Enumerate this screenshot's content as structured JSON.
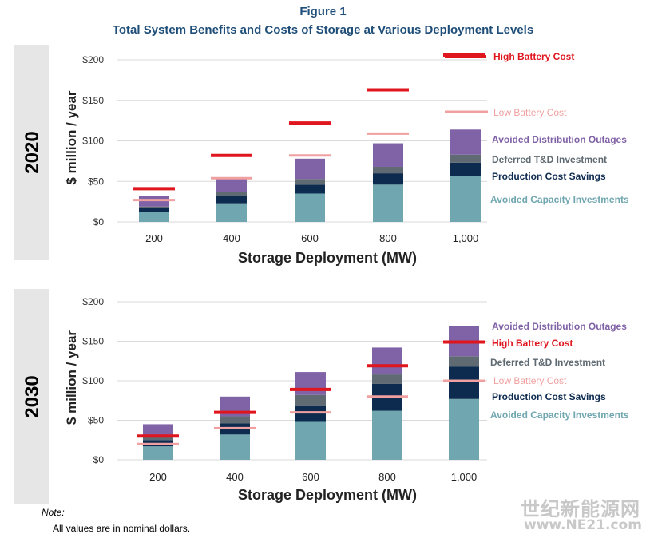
{
  "figure": {
    "label": "Figure 1",
    "title": "Total System Benefits and Costs of Storage at Various Deployment Levels"
  },
  "note": {
    "label": "Note:",
    "text": "All values are in nominal dollars."
  },
  "watermark": {
    "line1": "世纪新能源网",
    "line2": "www.NE21.com"
  },
  "colors": {
    "avoided_capacity": "#6fa6b0",
    "production_cost": "#0d2a4f",
    "deferred_td": "#5f6a72",
    "distribution_outages": "#8062a6",
    "high_battery": "#e0161e",
    "low_battery": "#f0a0a0",
    "panel_bg": "#e6e6e6",
    "title": "#1f4e79"
  },
  "chart_data": [
    {
      "type": "bar",
      "stacked": true,
      "panel_label": "2020",
      "xlabel": "Storage Deployment (MW)",
      "ylabel": "$ million / year",
      "categories": [
        "200",
        "400",
        "600",
        "800",
        "1,000"
      ],
      "ylim": [
        0,
        200
      ],
      "yticks": [
        "$0",
        "$50",
        "$100",
        "$150",
        "$200"
      ],
      "grid": true,
      "series": [
        {
          "name": "Avoided Capacity Investments",
          "values": [
            12,
            23,
            35,
            46,
            57
          ]
        },
        {
          "name": "Production Cost Savings",
          "values": [
            5,
            9,
            11,
            14,
            16
          ]
        },
        {
          "name": "Deferred T&D Investment",
          "values": [
            2,
            5,
            7,
            8,
            10
          ]
        },
        {
          "name": "Avoided Distribution Outages",
          "values": [
            13,
            16,
            25,
            29,
            31
          ]
        }
      ],
      "lines": [
        {
          "name": "High Battery Cost",
          "values": [
            41,
            82,
            122,
            163,
            204
          ]
        },
        {
          "name": "Low Battery Cost",
          "values": [
            27,
            54,
            82,
            109,
            136
          ]
        }
      ],
      "legend": [
        {
          "text": "High Battery Cost",
          "series": "high_battery"
        },
        {
          "text": "Low Battery Cost",
          "series": "low_battery"
        },
        {
          "text": "Avoided Distribution Outages",
          "series": "distribution_outages"
        },
        {
          "text": "Deferred T&D Investment",
          "series": "deferred_td"
        },
        {
          "text": "Production Cost Savings",
          "series": "production_cost"
        },
        {
          "text": "Avoided Capacity Investments",
          "series": "avoided_capacity"
        }
      ]
    },
    {
      "type": "bar",
      "stacked": true,
      "panel_label": "2030",
      "xlabel": "Storage Deployment (MW)",
      "ylabel": "$ million / year",
      "categories": [
        "200",
        "400",
        "600",
        "800",
        "1,000"
      ],
      "ylim": [
        0,
        200
      ],
      "yticks": [
        "$0",
        "$50",
        "$100",
        "$150",
        "$200"
      ],
      "grid": true,
      "series": [
        {
          "name": "Avoided Capacity Investments",
          "values": [
            17,
            32,
            48,
            62,
            77
          ]
        },
        {
          "name": "Production Cost Savings",
          "values": [
            8,
            14,
            20,
            34,
            41
          ]
        },
        {
          "name": "Deferred T&D Investment",
          "values": [
            5,
            9,
            14,
            12,
            13
          ]
        },
        {
          "name": "Avoided Distribution Outages",
          "values": [
            15,
            25,
            29,
            34,
            38
          ]
        }
      ],
      "lines": [
        {
          "name": "High Battery Cost",
          "values": [
            30,
            60,
            89,
            119,
            149
          ]
        },
        {
          "name": "Low Battery Cost",
          "values": [
            20,
            40,
            60,
            80,
            100
          ]
        }
      ],
      "legend": [
        {
          "text": "Avoided Distribution Outages",
          "series": "distribution_outages"
        },
        {
          "text": "High Battery Cost",
          "series": "high_battery"
        },
        {
          "text": "Deferred T&D Investment",
          "series": "deferred_td"
        },
        {
          "text": "Low Battery Cost",
          "series": "low_battery"
        },
        {
          "text": "Production Cost Savings",
          "series": "production_cost"
        },
        {
          "text": "Avoided Capacity Investments",
          "series": "avoided_capacity"
        }
      ]
    }
  ]
}
